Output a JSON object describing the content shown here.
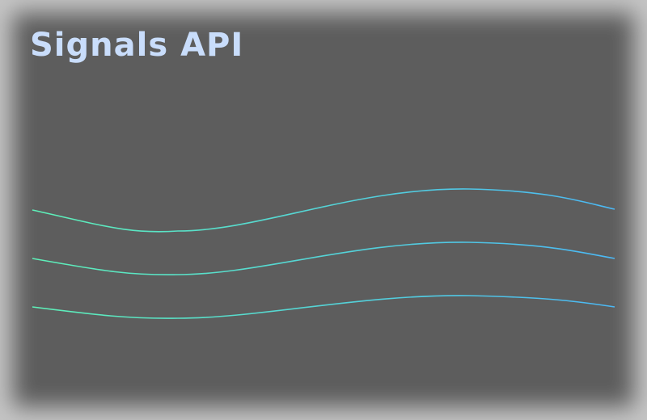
{
  "header": {
    "title": "Signals API"
  },
  "colors": {
    "background": "#5d5d5d",
    "title": "#c9ddfb",
    "wave_start": "#5ef0b8",
    "wave_end": "#4bb8f5"
  },
  "waves": {
    "count": 3
  }
}
